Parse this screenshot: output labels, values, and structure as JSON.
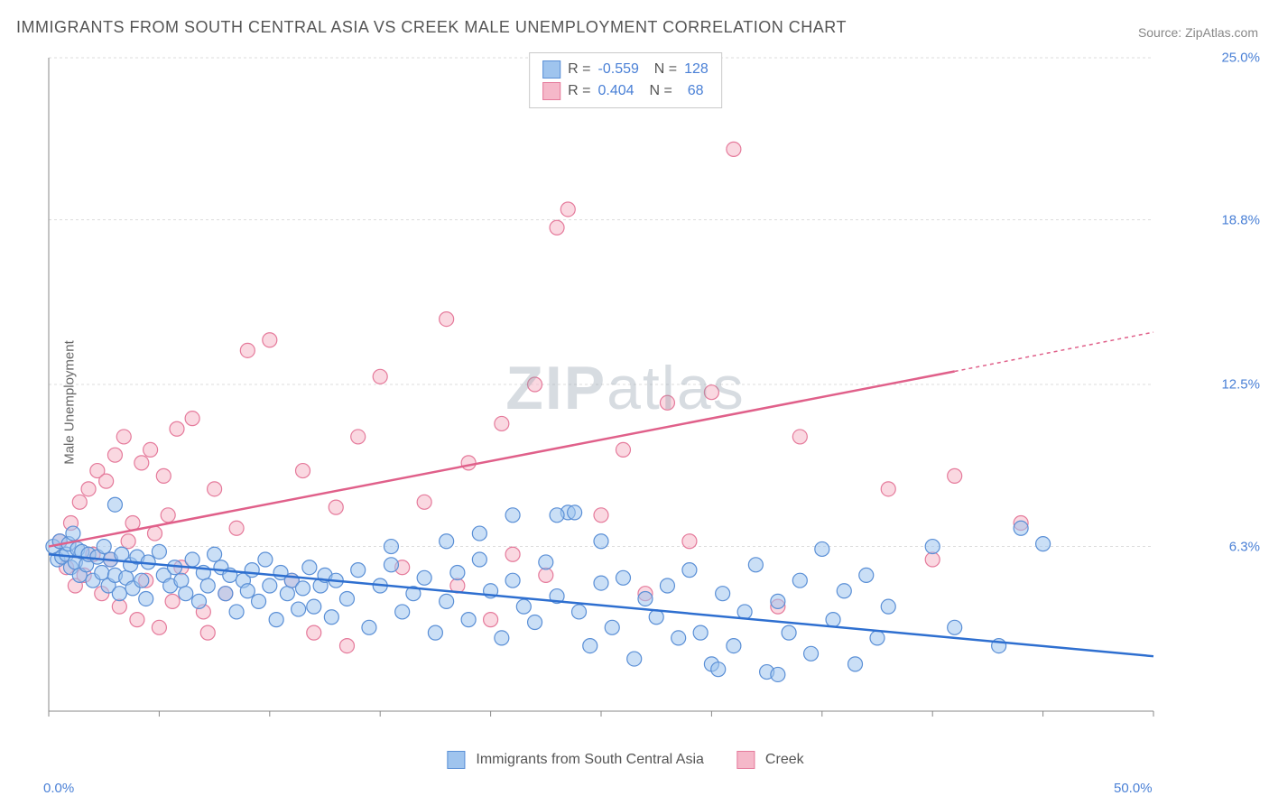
{
  "title": "IMMIGRANTS FROM SOUTH CENTRAL ASIA VS CREEK MALE UNEMPLOYMENT CORRELATION CHART",
  "source": "Source: ZipAtlas.com",
  "y_axis_label": "Male Unemployment",
  "watermark": {
    "bold": "ZIP",
    "light": "atlas"
  },
  "chart": {
    "type": "scatter",
    "xlim": [
      0,
      50
    ],
    "ylim": [
      0,
      25
    ],
    "x_ticks": [
      0,
      50
    ],
    "x_tick_labels": [
      "0.0%",
      "50.0%"
    ],
    "y_ticks": [
      6.3,
      12.5,
      18.8,
      25.0
    ],
    "y_tick_labels": [
      "6.3%",
      "12.5%",
      "18.8%",
      "25.0%"
    ],
    "grid_color": "#dddddd",
    "axis_color": "#888888",
    "background_color": "#ffffff",
    "marker_radius": 8,
    "marker_opacity": 0.55,
    "line_width": 2.5,
    "series": [
      {
        "name": "Immigrants from South Central Asia",
        "fill_color": "#9fc4ee",
        "stroke_color": "#5a8fd6",
        "line_color": "#2e6fd0",
        "R": "-0.559",
        "N": "128",
        "trend": {
          "x1": 0,
          "y1": 6.0,
          "x2": 50,
          "y2": 2.1
        },
        "points": [
          [
            0.2,
            6.3
          ],
          [
            0.4,
            5.8
          ],
          [
            0.5,
            6.5
          ],
          [
            0.6,
            5.9
          ],
          [
            0.8,
            6.0
          ],
          [
            0.9,
            6.4
          ],
          [
            1.0,
            5.5
          ],
          [
            1.1,
            6.8
          ],
          [
            1.2,
            5.7
          ],
          [
            1.3,
            6.2
          ],
          [
            1.4,
            5.2
          ],
          [
            1.5,
            6.1
          ],
          [
            1.7,
            5.6
          ],
          [
            1.8,
            6.0
          ],
          [
            2.0,
            5.0
          ],
          [
            2.2,
            5.9
          ],
          [
            2.4,
            5.3
          ],
          [
            2.5,
            6.3
          ],
          [
            2.7,
            4.8
          ],
          [
            2.8,
            5.8
          ],
          [
            3.0,
            5.2
          ],
          [
            3.2,
            4.5
          ],
          [
            3.3,
            6.0
          ],
          [
            3.5,
            5.1
          ],
          [
            3.7,
            5.6
          ],
          [
            3.8,
            4.7
          ],
          [
            4.0,
            5.9
          ],
          [
            4.2,
            5.0
          ],
          [
            4.4,
            4.3
          ],
          [
            4.5,
            5.7
          ],
          [
            3.0,
            7.9
          ],
          [
            5.0,
            6.1
          ],
          [
            5.2,
            5.2
          ],
          [
            5.5,
            4.8
          ],
          [
            5.7,
            5.5
          ],
          [
            6.0,
            5.0
          ],
          [
            6.2,
            4.5
          ],
          [
            6.5,
            5.8
          ],
          [
            6.8,
            4.2
          ],
          [
            7.0,
            5.3
          ],
          [
            7.2,
            4.8
          ],
          [
            7.5,
            6.0
          ],
          [
            7.8,
            5.5
          ],
          [
            8.0,
            4.5
          ],
          [
            8.2,
            5.2
          ],
          [
            8.5,
            3.8
          ],
          [
            8.8,
            5.0
          ],
          [
            9.0,
            4.6
          ],
          [
            9.2,
            5.4
          ],
          [
            9.5,
            4.2
          ],
          [
            9.8,
            5.8
          ],
          [
            10.0,
            4.8
          ],
          [
            10.3,
            3.5
          ],
          [
            10.5,
            5.3
          ],
          [
            10.8,
            4.5
          ],
          [
            11.0,
            5.0
          ],
          [
            11.3,
            3.9
          ],
          [
            11.5,
            4.7
          ],
          [
            11.8,
            5.5
          ],
          [
            12.0,
            4.0
          ],
          [
            12.3,
            4.8
          ],
          [
            12.5,
            5.2
          ],
          [
            12.8,
            3.6
          ],
          [
            13.0,
            5.0
          ],
          [
            13.5,
            4.3
          ],
          [
            14.0,
            5.4
          ],
          [
            14.5,
            3.2
          ],
          [
            15.0,
            4.8
          ],
          [
            15.5,
            5.6
          ],
          [
            16.0,
            3.8
          ],
          [
            16.5,
            4.5
          ],
          [
            17.0,
            5.1
          ],
          [
            17.5,
            3.0
          ],
          [
            18.0,
            4.2
          ],
          [
            18.5,
            5.3
          ],
          [
            19.0,
            3.5
          ],
          [
            19.5,
            5.8
          ],
          [
            20.0,
            4.6
          ],
          [
            20.5,
            2.8
          ],
          [
            21.0,
            5.0
          ],
          [
            21.5,
            4.0
          ],
          [
            22.0,
            3.4
          ],
          [
            22.5,
            5.7
          ],
          [
            23.0,
            4.4
          ],
          [
            23.5,
            7.6
          ],
          [
            23.8,
            7.6
          ],
          [
            24.0,
            3.8
          ],
          [
            24.5,
            2.5
          ],
          [
            25.0,
            4.9
          ],
          [
            25.5,
            3.2
          ],
          [
            26.0,
            5.1
          ],
          [
            26.5,
            2.0
          ],
          [
            27.0,
            4.3
          ],
          [
            21.0,
            7.5
          ],
          [
            23.0,
            7.5
          ],
          [
            27.5,
            3.6
          ],
          [
            28.0,
            4.8
          ],
          [
            28.5,
            2.8
          ],
          [
            29.0,
            5.4
          ],
          [
            29.5,
            3.0
          ],
          [
            30.0,
            1.8
          ],
          [
            30.3,
            1.6
          ],
          [
            30.5,
            4.5
          ],
          [
            31.0,
            2.5
          ],
          [
            31.5,
            3.8
          ],
          [
            32.0,
            5.6
          ],
          [
            32.5,
            1.5
          ],
          [
            33.0,
            1.4
          ],
          [
            33.0,
            4.2
          ],
          [
            33.5,
            3.0
          ],
          [
            34.0,
            5.0
          ],
          [
            34.5,
            2.2
          ],
          [
            35.0,
            6.2
          ],
          [
            35.5,
            3.5
          ],
          [
            36.0,
            4.6
          ],
          [
            36.5,
            1.8
          ],
          [
            37.0,
            5.2
          ],
          [
            37.5,
            2.8
          ],
          [
            38.0,
            4.0
          ],
          [
            40.0,
            6.3
          ],
          [
            41.0,
            3.2
          ],
          [
            43.0,
            2.5
          ],
          [
            44.0,
            7.0
          ],
          [
            45.0,
            6.4
          ],
          [
            18.0,
            6.5
          ],
          [
            19.5,
            6.8
          ],
          [
            15.5,
            6.3
          ],
          [
            25.0,
            6.5
          ]
        ]
      },
      {
        "name": "Creek",
        "fill_color": "#f5b8c9",
        "stroke_color": "#e57a9b",
        "line_color": "#e0608a",
        "R": "0.404",
        "N": "68",
        "trend": {
          "x1": 0,
          "y1": 6.3,
          "x2": 41,
          "y2": 13.0,
          "dashed_to_x": 50,
          "dashed_to_y": 14.5
        },
        "points": [
          [
            0.5,
            6.5
          ],
          [
            0.8,
            5.5
          ],
          [
            1.0,
            7.2
          ],
          [
            1.2,
            4.8
          ],
          [
            1.4,
            8.0
          ],
          [
            1.6,
            5.2
          ],
          [
            1.8,
            8.5
          ],
          [
            2.0,
            6.0
          ],
          [
            2.2,
            9.2
          ],
          [
            2.4,
            4.5
          ],
          [
            2.6,
            8.8
          ],
          [
            2.8,
            5.8
          ],
          [
            3.0,
            9.8
          ],
          [
            3.2,
            4.0
          ],
          [
            3.4,
            10.5
          ],
          [
            3.6,
            6.5
          ],
          [
            3.8,
            7.2
          ],
          [
            4.0,
            3.5
          ],
          [
            4.2,
            9.5
          ],
          [
            4.4,
            5.0
          ],
          [
            4.6,
            10.0
          ],
          [
            4.8,
            6.8
          ],
          [
            5.0,
            3.2
          ],
          [
            5.2,
            9.0
          ],
          [
            5.4,
            7.5
          ],
          [
            5.6,
            4.2
          ],
          [
            5.8,
            10.8
          ],
          [
            6.0,
            5.5
          ],
          [
            6.5,
            11.2
          ],
          [
            7.0,
            3.8
          ],
          [
            7.2,
            3.0
          ],
          [
            7.5,
            8.5
          ],
          [
            8.0,
            4.5
          ],
          [
            8.5,
            7.0
          ],
          [
            9.0,
            13.8
          ],
          [
            10.0,
            14.2
          ],
          [
            11.0,
            5.0
          ],
          [
            11.5,
            9.2
          ],
          [
            12.0,
            3.0
          ],
          [
            13.0,
            7.8
          ],
          [
            13.5,
            2.5
          ],
          [
            14.0,
            10.5
          ],
          [
            15.0,
            12.8
          ],
          [
            16.0,
            5.5
          ],
          [
            17.0,
            8.0
          ],
          [
            18.0,
            15.0
          ],
          [
            18.5,
            4.8
          ],
          [
            19.0,
            9.5
          ],
          [
            20.0,
            3.5
          ],
          [
            20.5,
            11.0
          ],
          [
            21.0,
            6.0
          ],
          [
            22.0,
            12.5
          ],
          [
            22.5,
            5.2
          ],
          [
            23.0,
            18.5
          ],
          [
            23.5,
            19.2
          ],
          [
            25.0,
            7.5
          ],
          [
            26.0,
            10.0
          ],
          [
            27.0,
            4.5
          ],
          [
            28.0,
            11.8
          ],
          [
            29.0,
            6.5
          ],
          [
            30.0,
            12.2
          ],
          [
            31.0,
            21.5
          ],
          [
            33.0,
            4.0
          ],
          [
            34.0,
            10.5
          ],
          [
            38.0,
            8.5
          ],
          [
            40.0,
            5.8
          ],
          [
            41.0,
            9.0
          ],
          [
            44.0,
            7.2
          ]
        ]
      }
    ]
  },
  "legend_bottom": {
    "series1_label": "Immigrants from South Central Asia",
    "series2_label": "Creek"
  }
}
